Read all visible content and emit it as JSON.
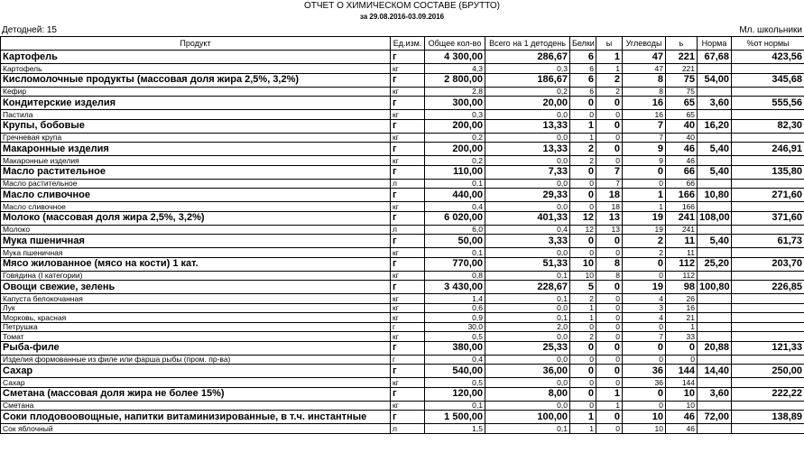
{
  "header": {
    "title": "ОТЧЕТ О ХИМИЧЕСКОМ СОСТАВЕ (БРУТТО)",
    "period": "за 29.08.2016-03.09.2016",
    "days": "Детодней: 15",
    "group": "Мл. школьники"
  },
  "table": {
    "columns": [
      "Продукт",
      "Ед.изм.",
      "Общее кол-во",
      "Всего на 1 детодень",
      "Белки",
      "ы",
      "Углеводы",
      "ь",
      "Норма",
      "%от нормы"
    ],
    "groups": [
      {
        "row": [
          "Картофель",
          "г",
          "4 300,00",
          "286,67",
          "6",
          "1",
          "47",
          "221",
          "67,68",
          "423,56"
        ],
        "items": [
          [
            "Картофель",
            "кг",
            "4,3",
            "0,3",
            "6",
            "1",
            "47",
            "221"
          ]
        ]
      },
      {
        "row": [
          "Кисломолочные продукты (массовая доля жира 2,5%, 3,2%)",
          "г",
          "2 800,00",
          "186,67",
          "6",
          "2",
          "8",
          "75",
          "54,00",
          "345,68"
        ],
        "items": [
          [
            "Кефир",
            "кг",
            "2,8",
            "0,2",
            "6",
            "2",
            "8",
            "75"
          ]
        ]
      },
      {
        "row": [
          "Кондитерские изделия",
          "г",
          "300,00",
          "20,00",
          "0",
          "0",
          "16",
          "65",
          "3,60",
          "555,56"
        ],
        "items": [
          [
            "Пастила",
            "кг",
            "0,3",
            "0,0",
            "0",
            "0",
            "16",
            "65"
          ]
        ]
      },
      {
        "row": [
          "Крупы, бобовые",
          "г",
          "200,00",
          "13,33",
          "1",
          "0",
          "7",
          "40",
          "16,20",
          "82,30"
        ],
        "items": [
          [
            "Гречневая крупа",
            "кг",
            "0,2",
            "0,0",
            "1",
            "0",
            "7",
            "40"
          ]
        ]
      },
      {
        "row": [
          "Макаронные изделия",
          "г",
          "200,00",
          "13,33",
          "2",
          "0",
          "9",
          "46",
          "5,40",
          "246,91"
        ],
        "items": [
          [
            "Макаронные изделия",
            "кг",
            "0,2",
            "0,0",
            "2",
            "0",
            "9",
            "46"
          ]
        ]
      },
      {
        "row": [
          "Масло растительное",
          "г",
          "110,00",
          "7,33",
          "0",
          "7",
          "0",
          "66",
          "5,40",
          "135,80"
        ],
        "items": [
          [
            "Масло растительное",
            "л",
            "0,1",
            "0,0",
            "0",
            "7",
            "0",
            "66"
          ]
        ]
      },
      {
        "row": [
          "Масло сливочное",
          "г",
          "440,00",
          "29,33",
          "0",
          "18",
          "1",
          "166",
          "10,80",
          "271,60"
        ],
        "items": [
          [
            "Масло сливочное",
            "кг",
            "0,4",
            "0,0",
            "0",
            "18",
            "1",
            "166"
          ]
        ]
      },
      {
        "row": [
          "Молоко (массовая доля жира 2,5%, 3,2%)",
          "г",
          "6 020,00",
          "401,33",
          "12",
          "13",
          "19",
          "241",
          "108,00",
          "371,60"
        ],
        "items": [
          [
            "Молоко",
            "л",
            "6,0",
            "0,4",
            "12",
            "13",
            "19",
            "241"
          ]
        ]
      },
      {
        "row": [
          "Мука пшеничная",
          "г",
          "50,00",
          "3,33",
          "0",
          "0",
          "2",
          "11",
          "5,40",
          "61,73"
        ],
        "items": [
          [
            "Мука пшеничная",
            "кг",
            "0,1",
            "0,0",
            "0",
            "0",
            "2",
            "11"
          ]
        ]
      },
      {
        "row": [
          "Мясо жилованное (мясо на кости) 1 кат.",
          "г",
          "770,00",
          "51,33",
          "10",
          "8",
          "0",
          "112",
          "25,20",
          "203,70"
        ],
        "items": [
          [
            "Говядина (I категории)",
            "кг",
            "0,8",
            "0,1",
            "10",
            "8",
            "0",
            "112"
          ]
        ]
      },
      {
        "row": [
          "Овощи свежие, зелень",
          "г",
          "3 430,00",
          "228,67",
          "5",
          "0",
          "19",
          "98",
          "100,80",
          "226,85"
        ],
        "items": [
          [
            "Капуста белокочанная",
            "кг",
            "1,4",
            "0,1",
            "2",
            "0",
            "4",
            "26"
          ],
          [
            "Лук",
            "кг",
            "0,6",
            "0,0",
            "1",
            "0",
            "3",
            "16"
          ],
          [
            "Морковь, красная",
            "кг",
            "0,9",
            "0,1",
            "1",
            "0",
            "4",
            "21"
          ],
          [
            "Петрушка",
            "г",
            "30,0",
            "2,0",
            "0",
            "0",
            "0",
            "1"
          ],
          [
            "Томат",
            "кг",
            "0,5",
            "0,0",
            "2",
            "0",
            "7",
            "33"
          ]
        ]
      },
      {
        "row": [
          "Рыба-филе",
          "г",
          "380,00",
          "25,33",
          "0",
          "0",
          "0",
          "0",
          "20,88",
          "121,33"
        ],
        "items": [
          [
            "Изделия формованные из филе или фарша рыбы (пром. пр-ва)",
            "г",
            "0,4",
            "0,0",
            "0",
            "0",
            "0",
            "0"
          ]
        ]
      },
      {
        "row": [
          "Сахар",
          "г",
          "540,00",
          "36,00",
          "0",
          "0",
          "36",
          "144",
          "14,40",
          "250,00"
        ],
        "items": [
          [
            "Сахар",
            "кг",
            "0,5",
            "0,0",
            "0",
            "0",
            "36",
            "144"
          ]
        ]
      },
      {
        "row": [
          "Сметана (массовая доля жира не более 15%)",
          "г",
          "120,00",
          "8,00",
          "0",
          "1",
          "0",
          "10",
          "3,60",
          "222,22"
        ],
        "items": [
          [
            "Сметана",
            "кг",
            "0,1",
            "0,0",
            "0",
            "1",
            "0",
            "10"
          ]
        ]
      },
      {
        "row": [
          "Соки плодовоовощные, напитки витаминизированные, в т.ч. инстантные",
          "г",
          "1 500,00",
          "100,00",
          "1",
          "0",
          "10",
          "46",
          "72,00",
          "138,89"
        ],
        "items": [
          [
            "Сок яблочный",
            "л",
            "1,5",
            "0,1",
            "1",
            "0",
            "10",
            "46"
          ]
        ]
      }
    ]
  }
}
